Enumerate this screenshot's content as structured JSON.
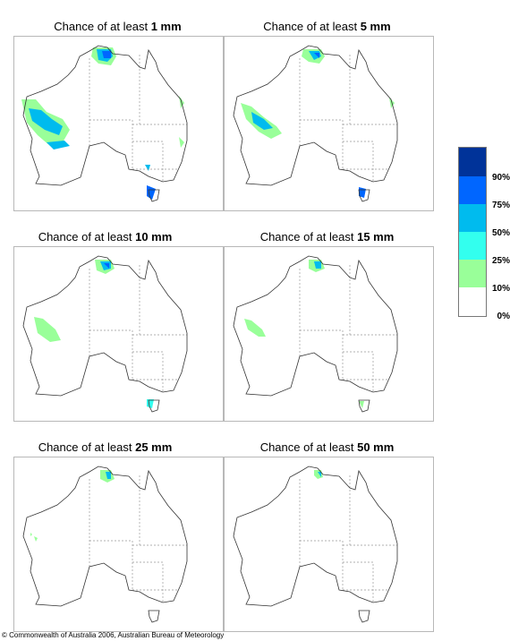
{
  "title_prefix": "Chance of at least",
  "unit": "mm",
  "panels": [
    {
      "threshold": "1",
      "label": "1 mm"
    },
    {
      "threshold": "5",
      "label": "5 mm"
    },
    {
      "threshold": "10",
      "label": "10 mm"
    },
    {
      "threshold": "15",
      "label": "15 mm"
    },
    {
      "threshold": "25",
      "label": "25 mm"
    },
    {
      "threshold": "50",
      "label": "50 mm"
    }
  ],
  "legend": {
    "labels": [
      "90%",
      "75%",
      "50%",
      "25%",
      "10%",
      "0%"
    ],
    "colors": [
      "#003399",
      "#0066ff",
      "#00bbee",
      "#33ffee",
      "#99ff99",
      "#ffffff"
    ]
  },
  "copyright": "© Commonwealth of Australia 2006, Australian Bureau of Meteorology"
}
